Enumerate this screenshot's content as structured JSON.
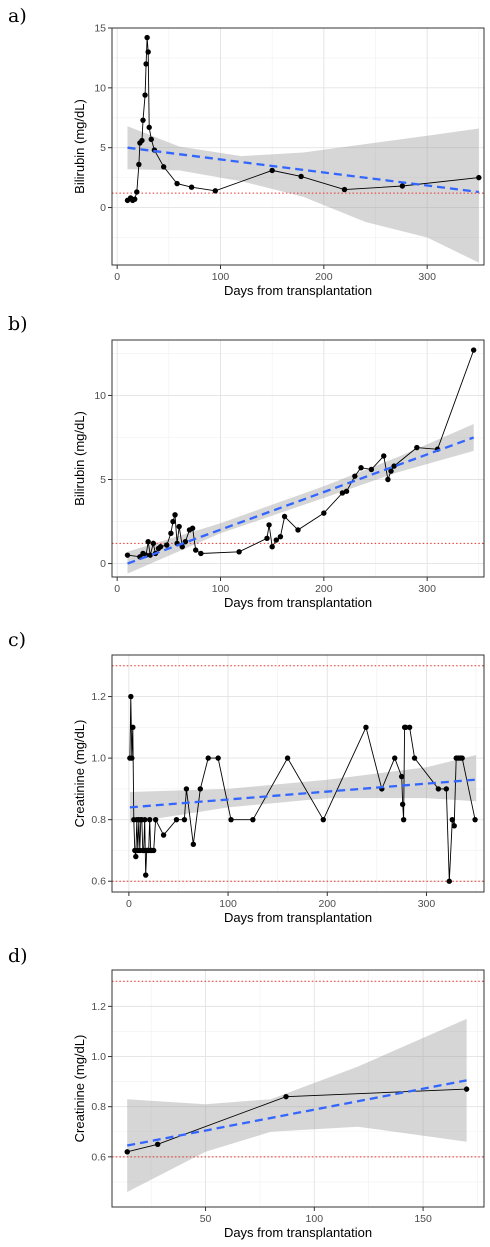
{
  "chart_data": [
    {
      "type": "line",
      "panel_label": "a)",
      "xlabel": "Days from transplantation",
      "ylabel": "Bilirubin (mg/dL)",
      "xlim": [
        -5,
        355
      ],
      "ylim": [
        -4.8,
        15
      ],
      "xticks": [
        0,
        100,
        200,
        300
      ],
      "yticks": [
        0,
        5,
        10,
        15
      ],
      "grid": true,
      "reference_lines": [
        1.2
      ],
      "points": {
        "x": [
          10,
          13,
          15,
          17,
          19,
          21,
          22,
          24,
          25,
          27,
          28,
          29,
          30,
          31,
          33,
          36,
          45,
          58,
          72,
          95,
          150,
          178,
          220,
          276,
          350
        ],
        "y": [
          0.6,
          0.8,
          0.6,
          0.7,
          1.3,
          3.6,
          5.4,
          5.6,
          7.3,
          9.4,
          12.0,
          14.2,
          13.0,
          6.7,
          5.7,
          4.8,
          3.4,
          2.0,
          1.7,
          1.4,
          3.1,
          2.6,
          1.5,
          1.8,
          2.5
        ]
      },
      "trend": {
        "x": [
          10,
          350
        ],
        "y": [
          5.0,
          1.3
        ]
      },
      "ci_band": {
        "x": [
          10,
          60,
          120,
          180,
          240,
          300,
          350
        ],
        "lower": [
          3.2,
          3.1,
          2.2,
          0.9,
          -1.2,
          -2.5,
          -4.6
        ],
        "upper": [
          6.8,
          5.1,
          4.3,
          4.6,
          5.3,
          6.0,
          6.6
        ]
      }
    },
    {
      "type": "line",
      "panel_label": "b)",
      "xlabel": "Days from transplantation",
      "ylabel": "Bilirubin (mg/dL)",
      "xlim": [
        -5,
        355
      ],
      "ylim": [
        -0.8,
        13.3
      ],
      "xticks": [
        0,
        100,
        200,
        300
      ],
      "yticks": [
        0,
        5,
        10
      ],
      "grid": true,
      "reference_lines": [
        1.2
      ],
      "points": {
        "x": [
          10,
          22,
          25,
          28,
          30,
          32,
          35,
          37,
          40,
          42,
          48,
          52,
          54,
          56,
          58,
          60,
          63,
          66,
          70,
          73,
          76,
          81,
          118,
          145,
          147,
          150,
          154,
          158,
          162,
          175,
          200,
          218,
          222,
          230,
          236,
          246,
          258,
          262,
          265,
          268,
          290,
          310,
          345
        ],
        "y": [
          0.5,
          0.4,
          0.6,
          0.5,
          1.3,
          0.5,
          1.2,
          0.6,
          0.9,
          1.0,
          1.1,
          1.8,
          2.5,
          2.9,
          1.2,
          2.2,
          1.0,
          1.3,
          2.0,
          2.1,
          0.8,
          0.6,
          0.7,
          1.5,
          2.3,
          1.0,
          1.4,
          1.6,
          2.8,
          2.0,
          3.0,
          4.2,
          4.3,
          5.2,
          5.7,
          5.6,
          6.4,
          5.0,
          5.5,
          5.8,
          6.9,
          6.8,
          12.7
        ]
      },
      "trend": {
        "x": [
          10,
          345
        ],
        "y": [
          0.0,
          7.5
        ]
      },
      "ci_band": {
        "x": [
          10,
          100,
          200,
          270,
          345
        ],
        "lower": [
          -0.6,
          1.8,
          3.9,
          5.4,
          6.7
        ],
        "upper": [
          0.7,
          2.4,
          4.6,
          6.3,
          8.3
        ]
      }
    },
    {
      "type": "line",
      "panel_label": "c)",
      "xlabel": "Days from transplantation",
      "ylabel": "Creatinine (mg/dL)",
      "xlim": [
        -17,
        358
      ],
      "ylim": [
        0.565,
        1.335
      ],
      "xticks": [
        0,
        100,
        200,
        300
      ],
      "yticks": [
        0.6,
        0.8,
        1.0,
        1.2
      ],
      "yticks_labels": [
        "0.6",
        "0.8",
        "1.0",
        "1.2"
      ],
      "grid": true,
      "reference_lines": [
        0.6,
        1.3
      ],
      "points": {
        "x": [
          1,
          2,
          3,
          4,
          5,
          6,
          7,
          8,
          9,
          10,
          11,
          12,
          13,
          14,
          15,
          16,
          17,
          18,
          19,
          20,
          21,
          22,
          23,
          25,
          27,
          35,
          48,
          56,
          58,
          65,
          72,
          80,
          90,
          103,
          125,
          160,
          196,
          239,
          255,
          268,
          275,
          276,
          277,
          278,
          279,
          283,
          288,
          312,
          320,
          323,
          326,
          328,
          330,
          332,
          334,
          336,
          349
        ],
        "y": [
          1.0,
          1.2,
          1.0,
          1.1,
          0.8,
          0.7,
          0.68,
          0.8,
          0.7,
          0.8,
          0.7,
          0.8,
          0.8,
          0.7,
          0.7,
          0.8,
          0.62,
          0.7,
          0.7,
          0.7,
          0.8,
          0.7,
          0.7,
          0.7,
          0.8,
          0.75,
          0.8,
          0.8,
          0.9,
          0.72,
          0.9,
          1.0,
          1.0,
          0.8,
          0.8,
          1.0,
          0.8,
          1.1,
          0.9,
          1.0,
          0.94,
          0.85,
          0.8,
          1.1,
          1.1,
          1.1,
          1.0,
          0.9,
          0.9,
          0.6,
          0.8,
          0.78,
          1.0,
          1.0,
          1.0,
          1.0,
          0.8
        ]
      },
      "trend": {
        "x": [
          1,
          350
        ],
        "y": [
          0.84,
          0.93
        ]
      },
      "ci_band": {
        "x": [
          1,
          100,
          200,
          300,
          350
        ],
        "lower": [
          0.79,
          0.84,
          0.87,
          0.87,
          0.86
        ],
        "upper": [
          0.89,
          0.9,
          0.93,
          0.97,
          1.01
        ]
      }
    },
    {
      "type": "line",
      "panel_label": "d)",
      "xlabel": "Days from transplantation",
      "ylabel": "Creatinine (mg/dL)",
      "xlim": [
        7,
        178
      ],
      "ylim": [
        0.4,
        1.345
      ],
      "xticks": [
        50,
        100,
        150
      ],
      "yticks": [
        0.6,
        0.8,
        1.0,
        1.2
      ],
      "yticks_labels": [
        "0.6",
        "0.8",
        "1.0",
        "1.2"
      ],
      "grid": true,
      "reference_lines": [
        0.6,
        1.3
      ],
      "points": {
        "x": [
          14,
          28,
          87,
          170
        ],
        "y": [
          0.62,
          0.65,
          0.84,
          0.87
        ]
      },
      "trend": {
        "x": [
          14,
          170
        ],
        "y": [
          0.645,
          0.905
        ]
      },
      "ci_band": {
        "x": [
          14,
          50,
          80,
          120,
          170
        ],
        "lower": [
          0.46,
          0.62,
          0.7,
          0.72,
          0.66
        ],
        "upper": [
          0.83,
          0.81,
          0.83,
          0.96,
          1.15
        ]
      }
    }
  ]
}
